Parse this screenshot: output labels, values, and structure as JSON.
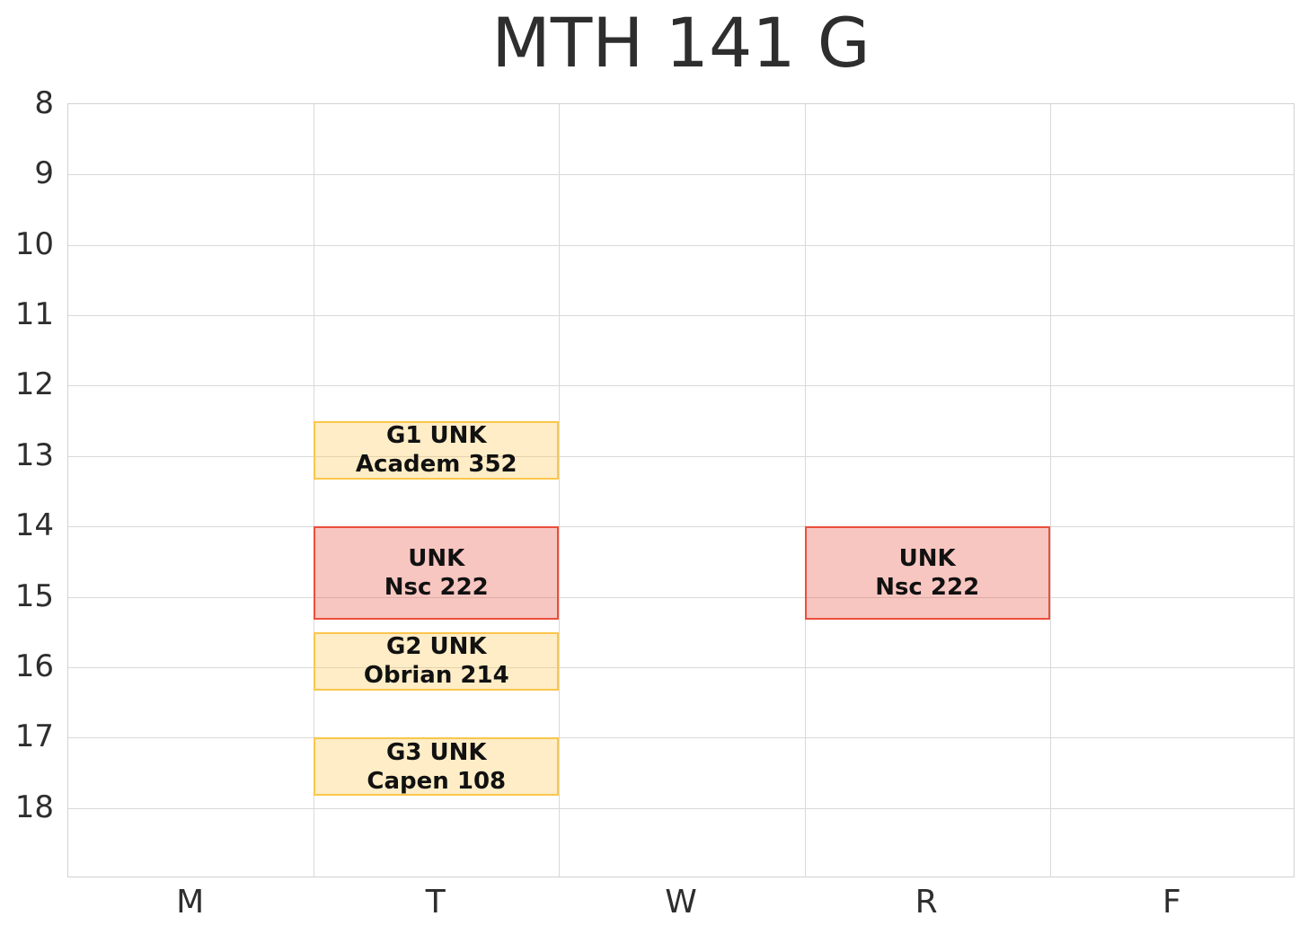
{
  "chart_data": {
    "type": "bar",
    "subtype": "weekly-schedule-timetable",
    "title": "MTH 141 G",
    "xlabel": "",
    "ylabel": "",
    "x_categories": [
      "M",
      "T",
      "W",
      "R",
      "F"
    ],
    "y_ticks": [
      8,
      9,
      10,
      11,
      12,
      13,
      14,
      15,
      16,
      17,
      18
    ],
    "ylim": [
      8,
      19
    ],
    "y_axis_inverted_top_is_min": true,
    "grid": true,
    "legend": "none",
    "events": [
      {
        "day": "T",
        "start": 12.5,
        "end": 13.33,
        "line1": "G1 UNK",
        "line2": "Academ 352",
        "color_key": "yellow"
      },
      {
        "day": "T",
        "start": 14.0,
        "end": 15.33,
        "line1": "UNK",
        "line2": "Nsc 222",
        "color_key": "red"
      },
      {
        "day": "T",
        "start": 15.5,
        "end": 16.33,
        "line1": "G2 UNK",
        "line2": "Obrian 214",
        "color_key": "yellow"
      },
      {
        "day": "T",
        "start": 17.0,
        "end": 17.83,
        "line1": "G3 UNK",
        "line2": "Capen 108",
        "color_key": "yellow"
      },
      {
        "day": "R",
        "start": 14.0,
        "end": 15.33,
        "line1": "UNK",
        "line2": "Nsc 222",
        "color_key": "red"
      }
    ],
    "colors": {
      "yellow": {
        "border": "#FBC64D",
        "fill": "rgba(251, 198, 77, 0.32)",
        "border_width": 2
      },
      "red": {
        "border": "#EA4F3C",
        "fill": "rgba(234, 79, 60, 0.32)",
        "border_width": 2.5
      },
      "grid": "#D9D9D9",
      "spine": "#D2D2D2",
      "tick_text": "#2E2E2E",
      "title_text": "#2E2E2E",
      "block_text": "#111111",
      "background": "#FFFFFF"
    }
  }
}
